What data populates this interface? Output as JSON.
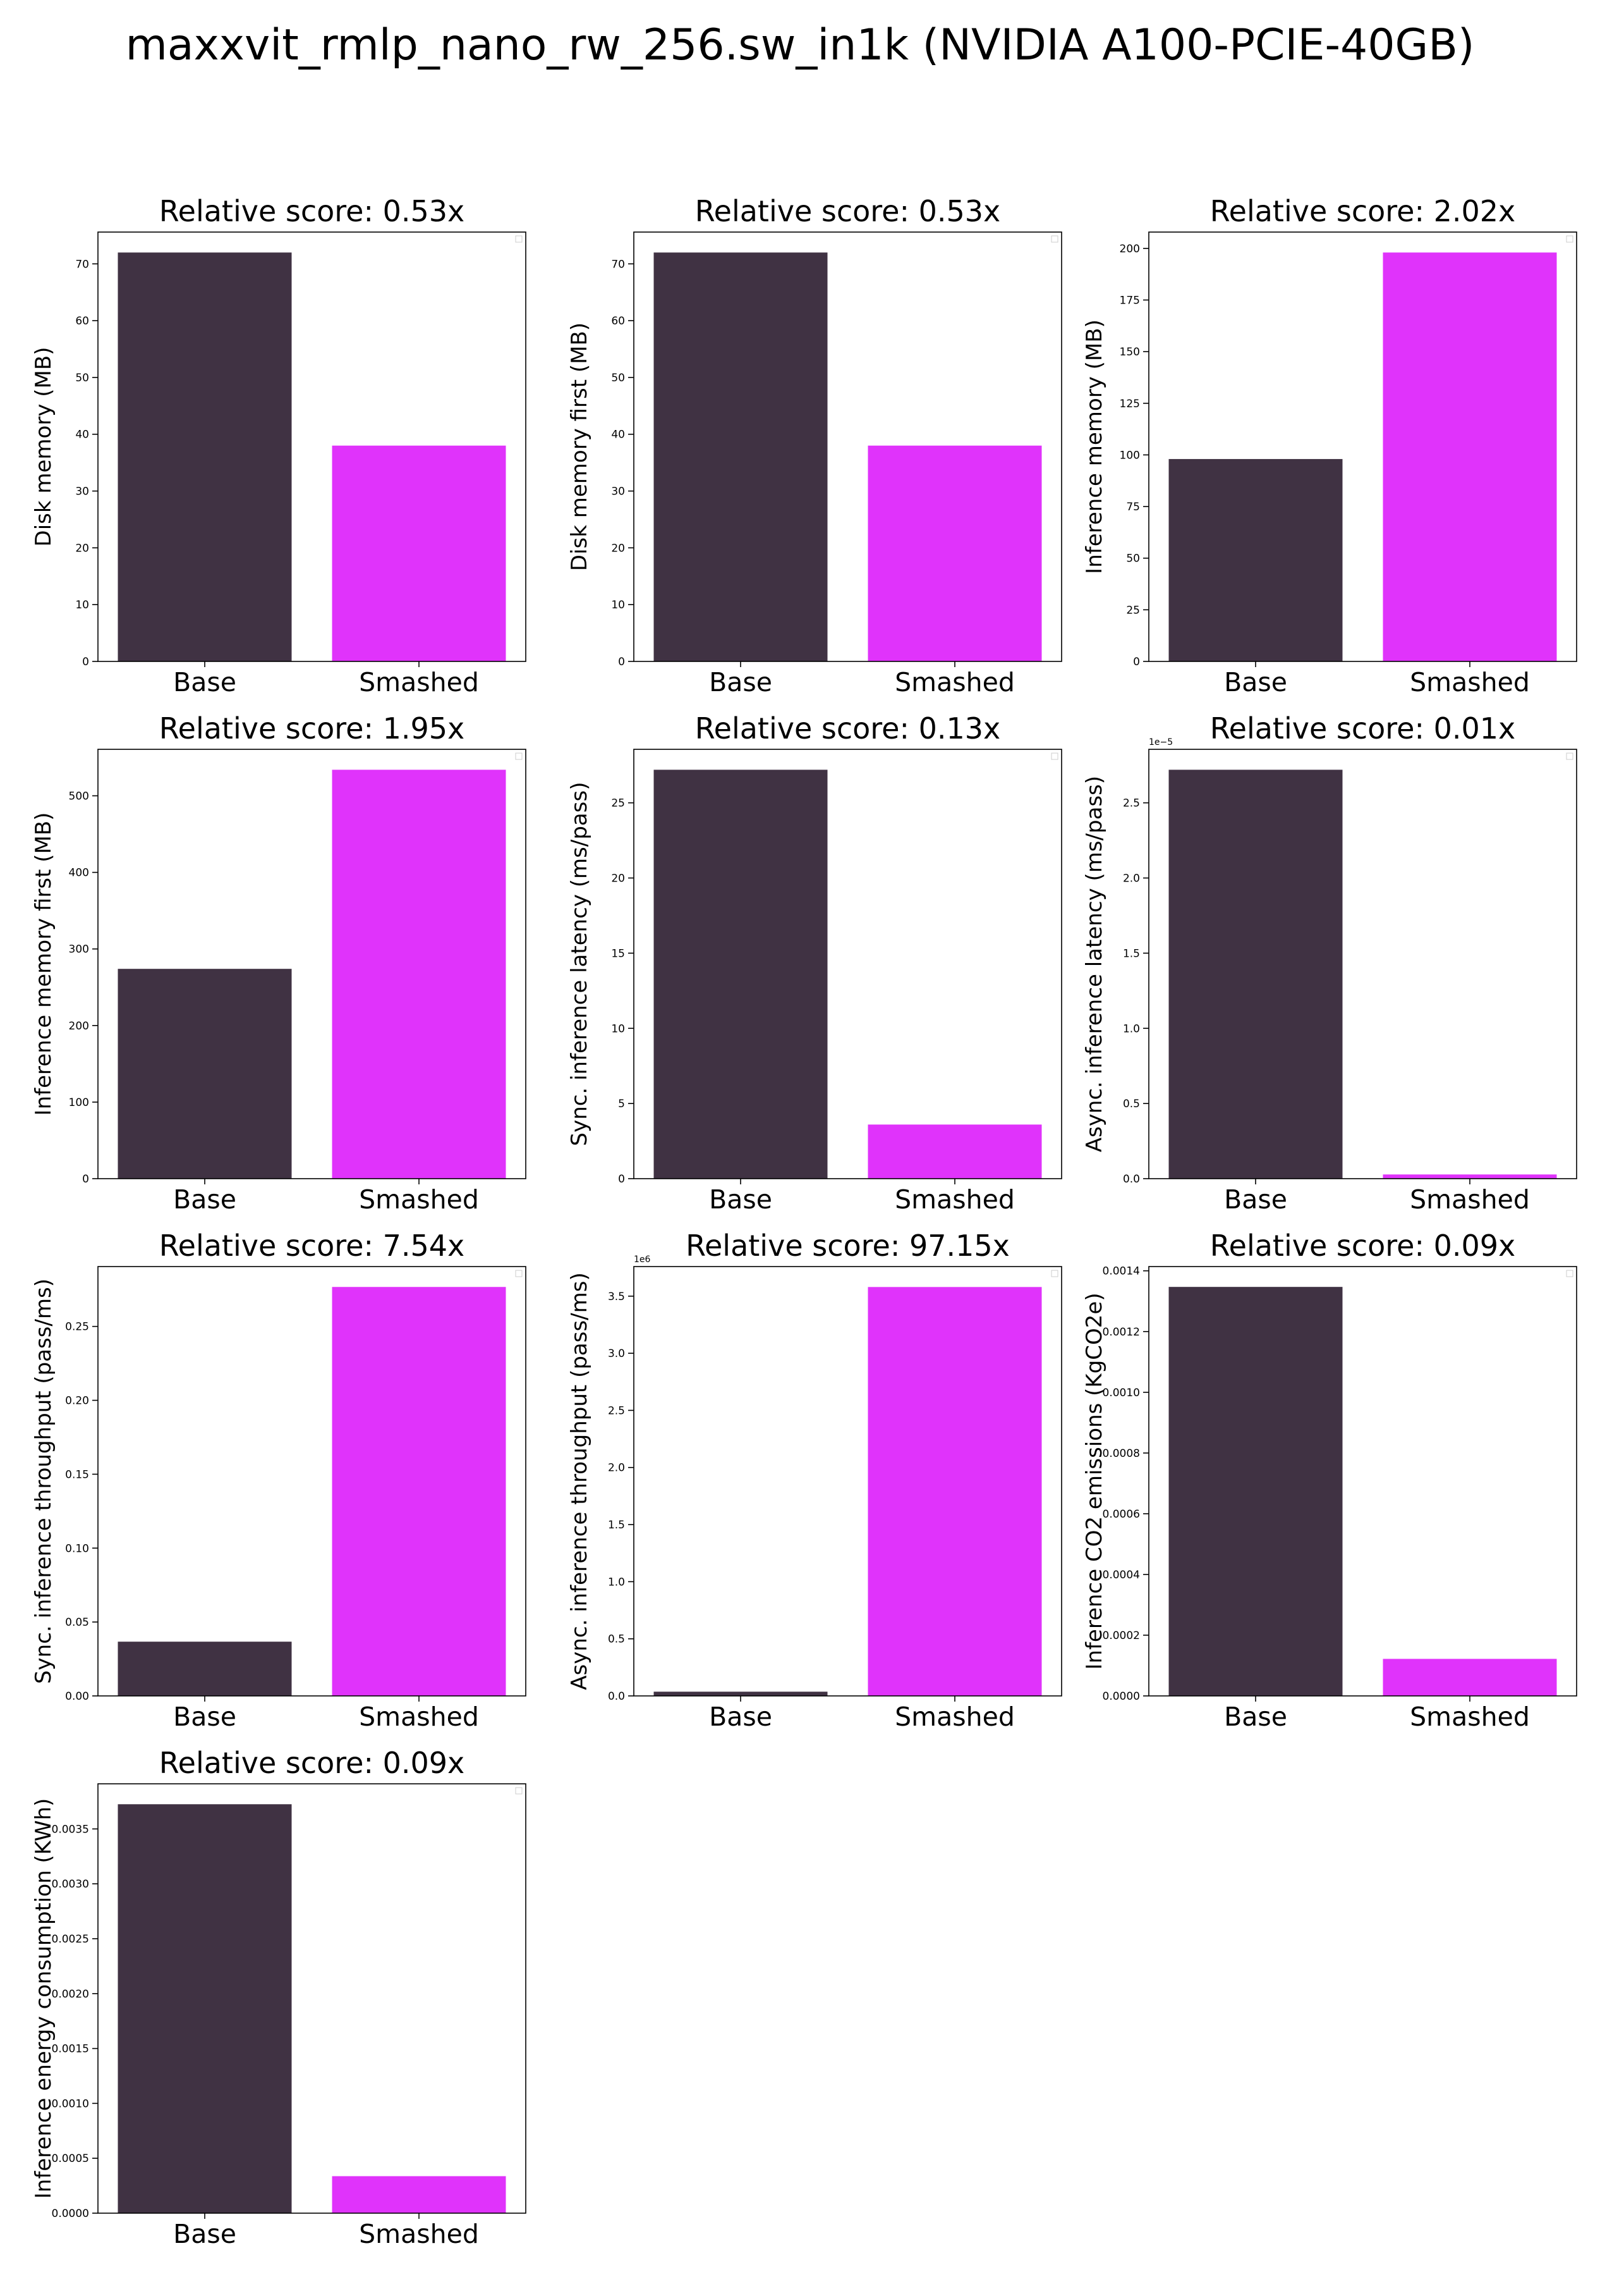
{
  "figure": {
    "title": "maxxvit_rmlp_nano_rw_256.sw_in1k (NVIDIA A100-PCIE-40GB)"
  },
  "colors": {
    "base": "#403243",
    "smashed": "#e033fb",
    "axis": "#000000"
  },
  "chart_data": [
    {
      "type": "bar",
      "title": "Relative score: 0.53x",
      "ylabel": "Disk memory (MB)",
      "categories": [
        "Base",
        "Smashed"
      ],
      "values": [
        72.0,
        38.0
      ],
      "ylim": [
        0,
        75.6
      ],
      "yticks": [
        0,
        10,
        20,
        30,
        40,
        50,
        60,
        70
      ],
      "ytick_labels": [
        "0",
        "10",
        "20",
        "30",
        "40",
        "50",
        "60",
        "70"
      ],
      "offset_text": ""
    },
    {
      "type": "bar",
      "title": "Relative score: 0.53x",
      "ylabel": "Disk memory first (MB)",
      "categories": [
        "Base",
        "Smashed"
      ],
      "values": [
        72.0,
        38.0
      ],
      "ylim": [
        0,
        75.6
      ],
      "yticks": [
        0,
        10,
        20,
        30,
        40,
        50,
        60,
        70
      ],
      "ytick_labels": [
        "0",
        "10",
        "20",
        "30",
        "40",
        "50",
        "60",
        "70"
      ],
      "offset_text": ""
    },
    {
      "type": "bar",
      "title": "Relative score: 2.02x",
      "ylabel": "Inference memory (MB)",
      "categories": [
        "Base",
        "Smashed"
      ],
      "values": [
        98.0,
        198.0
      ],
      "ylim": [
        0,
        207.9
      ],
      "yticks": [
        0,
        25,
        50,
        75,
        100,
        125,
        150,
        175,
        200
      ],
      "ytick_labels": [
        "0",
        "25",
        "50",
        "75",
        "100",
        "125",
        "150",
        "175",
        "200"
      ],
      "offset_text": ""
    },
    {
      "type": "bar",
      "title": "Relative score: 1.95x",
      "ylabel": "Inference memory first (MB)",
      "categories": [
        "Base",
        "Smashed"
      ],
      "values": [
        274.0,
        534.0
      ],
      "ylim": [
        0,
        560.7
      ],
      "yticks": [
        0,
        100,
        200,
        300,
        400,
        500
      ],
      "ytick_labels": [
        "0",
        "100",
        "200",
        "300",
        "400",
        "500"
      ],
      "offset_text": ""
    },
    {
      "type": "bar",
      "title": "Relative score: 0.13x",
      "ylabel": "Sync. inference latency (ms/pass)",
      "categories": [
        "Base",
        "Smashed"
      ],
      "values": [
        27.2,
        3.6
      ],
      "ylim": [
        0,
        28.56
      ],
      "yticks": [
        0,
        5,
        10,
        15,
        20,
        25
      ],
      "ytick_labels": [
        "0",
        "5",
        "10",
        "15",
        "20",
        "25"
      ],
      "offset_text": ""
    },
    {
      "type": "bar",
      "title": "Relative score: 0.01x",
      "ylabel": "Async. inference latency (ms/pass)",
      "categories": [
        "Base",
        "Smashed"
      ],
      "values": [
        2.72,
        0.028
      ],
      "ylim": [
        0,
        2.856
      ],
      "yticks": [
        0,
        0.5,
        1.0,
        1.5,
        2.0,
        2.5
      ],
      "ytick_labels": [
        "0.0",
        "0.5",
        "1.0",
        "1.5",
        "2.0",
        "2.5"
      ],
      "offset_text": "1e−5"
    },
    {
      "type": "bar",
      "title": "Relative score: 7.54x",
      "ylabel": "Sync. inference throughput (pass/ms)",
      "categories": [
        "Base",
        "Smashed"
      ],
      "values": [
        0.0367,
        0.2767
      ],
      "ylim": [
        0,
        0.2905
      ],
      "yticks": [
        0,
        0.05,
        0.1,
        0.15,
        0.2,
        0.25
      ],
      "ytick_labels": [
        "0.00",
        "0.05",
        "0.10",
        "0.15",
        "0.20",
        "0.25"
      ],
      "offset_text": ""
    },
    {
      "type": "bar",
      "title": "Relative score: 97.15x",
      "ylabel": "Async. inference throughput (pass/ms)",
      "categories": [
        "Base",
        "Smashed"
      ],
      "values": [
        0.037,
        3.58
      ],
      "ylim": [
        0,
        3.759
      ],
      "yticks": [
        0,
        0.5,
        1.0,
        1.5,
        2.0,
        2.5,
        3.0,
        3.5
      ],
      "ytick_labels": [
        "0.0",
        "0.5",
        "1.0",
        "1.5",
        "2.0",
        "2.5",
        "3.0",
        "3.5"
      ],
      "offset_text": "1e6"
    },
    {
      "type": "bar",
      "title": "Relative score: 0.09x",
      "ylabel": "Inference CO2 emissions (KgCO2e)",
      "categories": [
        "Base",
        "Smashed"
      ],
      "values": [
        0.001347,
        0.000122
      ],
      "ylim": [
        0,
        0.001414
      ],
      "yticks": [
        0,
        0.0002,
        0.0004,
        0.0006,
        0.0008,
        0.001,
        0.0012,
        0.0014
      ],
      "ytick_labels": [
        "0.0000",
        "0.0002",
        "0.0004",
        "0.0006",
        "0.0008",
        "0.0010",
        "0.0012",
        "0.0014"
      ],
      "offset_text": ""
    },
    {
      "type": "bar",
      "title": "Relative score: 0.09x",
      "ylabel": "Inference energy consumption (KWh)",
      "categories": [
        "Base",
        "Smashed"
      ],
      "values": [
        0.003725,
        0.000337
      ],
      "ylim": [
        0,
        0.003911
      ],
      "yticks": [
        0,
        0.0005,
        0.001,
        0.0015,
        0.002,
        0.0025,
        0.003,
        0.0035
      ],
      "ytick_labels": [
        "0.0000",
        "0.0005",
        "0.0010",
        "0.0015",
        "0.0020",
        "0.0025",
        "0.0030",
        "0.0035"
      ],
      "offset_text": ""
    }
  ]
}
